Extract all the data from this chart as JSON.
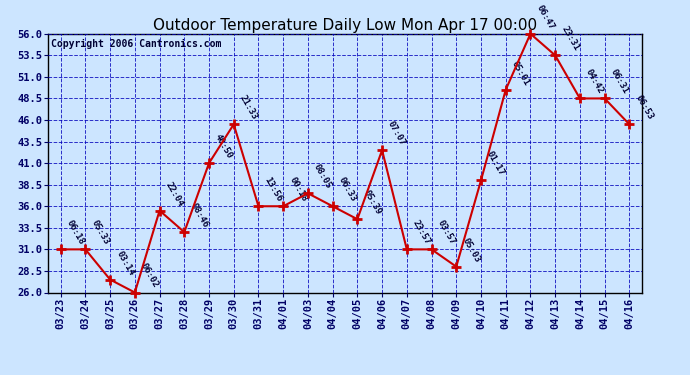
{
  "title": "Outdoor Temperature Daily Low Mon Apr 17 00:00",
  "copyright": "Copyright 2006 Cantronics.com",
  "x_labels": [
    "03/23",
    "03/24",
    "03/25",
    "03/26",
    "03/27",
    "03/28",
    "03/29",
    "03/30",
    "03/31",
    "04/01",
    "04/03",
    "04/04",
    "04/05",
    "04/06",
    "04/07",
    "04/08",
    "04/09",
    "04/10",
    "04/11",
    "04/12",
    "04/13",
    "04/14",
    "04/15",
    "04/16"
  ],
  "y_values": [
    31.0,
    31.0,
    27.5,
    26.0,
    35.5,
    33.0,
    41.0,
    45.5,
    36.0,
    36.0,
    37.5,
    36.0,
    34.5,
    42.5,
    31.0,
    31.0,
    29.0,
    39.0,
    49.5,
    56.0,
    53.5,
    48.5,
    48.5,
    45.5
  ],
  "point_labels": [
    "06:18",
    "05:33",
    "03:14",
    "06:02",
    "22:04",
    "08:46",
    "40:50",
    "21:33",
    "13:56",
    "00:18",
    "08:05",
    "06:33",
    "05:39",
    "07:07",
    "23:57",
    "03:57",
    "05:03",
    "01:17",
    "05:01",
    "06:47",
    "23:31",
    "04:42",
    "06:31",
    "06:53"
  ],
  "ylim": [
    26.0,
    56.0
  ],
  "yticks": [
    26.0,
    28.5,
    31.0,
    33.5,
    36.0,
    38.5,
    41.0,
    43.5,
    46.0,
    48.5,
    51.0,
    53.5,
    56.0
  ],
  "line_color": "#cc0000",
  "marker_color": "#cc0000",
  "bg_color": "#cce5ff",
  "grid_color": "#0000bb",
  "title_fontsize": 11,
  "copyright_fontsize": 7,
  "label_fontsize": 6.5,
  "tick_fontsize": 7.5,
  "axis_label_color": "#000066",
  "title_color": "#000000",
  "fig_width": 6.9,
  "fig_height": 3.75,
  "dpi": 100
}
